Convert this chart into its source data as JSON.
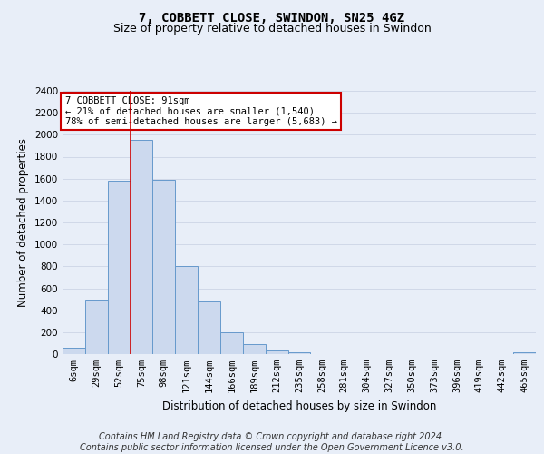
{
  "title_line1": "7, COBBETT CLOSE, SWINDON, SN25 4GZ",
  "title_line2": "Size of property relative to detached houses in Swindon",
  "xlabel": "Distribution of detached houses by size in Swindon",
  "ylabel": "Number of detached properties",
  "bar_color": "#ccd9ee",
  "bar_edge_color": "#6699cc",
  "categories": [
    "6sqm",
    "29sqm",
    "52sqm",
    "75sqm",
    "98sqm",
    "121sqm",
    "144sqm",
    "166sqm",
    "189sqm",
    "212sqm",
    "235sqm",
    "258sqm",
    "281sqm",
    "304sqm",
    "327sqm",
    "350sqm",
    "373sqm",
    "396sqm",
    "419sqm",
    "442sqm",
    "465sqm"
  ],
  "values": [
    60,
    500,
    1580,
    1950,
    1590,
    800,
    480,
    200,
    90,
    35,
    20,
    0,
    0,
    0,
    0,
    0,
    0,
    0,
    0,
    0,
    20
  ],
  "ylim": [
    0,
    2400
  ],
  "yticks": [
    0,
    200,
    400,
    600,
    800,
    1000,
    1200,
    1400,
    1600,
    1800,
    2000,
    2200,
    2400
  ],
  "red_line_x": 2.5,
  "annotation_title": "7 COBBETT CLOSE: 91sqm",
  "annotation_line1": "← 21% of detached houses are smaller (1,540)",
  "annotation_line2": "78% of semi-detached houses are larger (5,683) →",
  "annotation_box_facecolor": "#ffffff",
  "annotation_box_edgecolor": "#cc0000",
  "red_line_color": "#cc0000",
  "footer_line1": "Contains HM Land Registry data © Crown copyright and database right 2024.",
  "footer_line2": "Contains public sector information licensed under the Open Government Licence v3.0.",
  "bg_color": "#e8eef8",
  "grid_color": "#d0d8e8",
  "title_fontsize": 10,
  "subtitle_fontsize": 9,
  "axis_label_fontsize": 8.5,
  "tick_fontsize": 7.5,
  "annotation_fontsize": 7.5,
  "footer_fontsize": 7
}
